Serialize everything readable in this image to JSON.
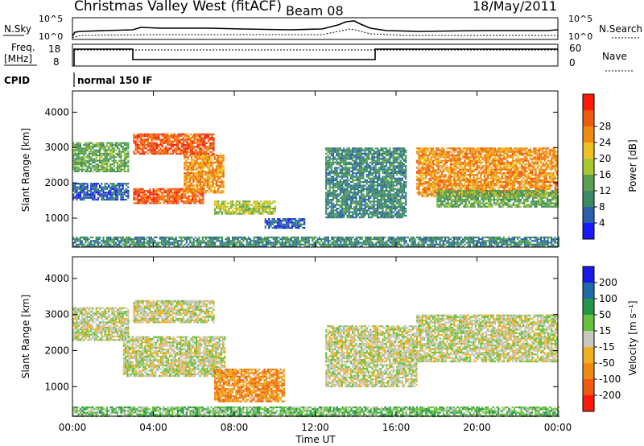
{
  "header": {
    "title": "Christmas Valley West (fitACF)",
    "beam": "Beam 08",
    "date": "18/May/2011"
  },
  "strip_panels": {
    "nsky_label": "N.Sky",
    "nsearch_label": "N.Search",
    "noise_ticks_left": [
      "10^5",
      "10^0"
    ],
    "noise_ticks_right": [
      "10^5",
      "10^0"
    ],
    "freq_label_1": "Freq.",
    "freq_label_2": "[MHz]",
    "freq_ticks": [
      "18",
      "8"
    ],
    "nave_label": "Nave",
    "nave_ticks": [
      "60",
      "0"
    ],
    "cpid_label": "CPID",
    "cpid_value": "normal 150 IF"
  },
  "colors": {
    "power": [
      "#1a1aff",
      "#2a5fb0",
      "#3b8c66",
      "#5aa050",
      "#a8c832",
      "#f0c020",
      "#f08a10",
      "#f05a10",
      "#ff1a0a"
    ],
    "velocity": [
      "#1a1ae6",
      "#1f6aa8",
      "#23964a",
      "#66c23a",
      "#c8c8c0",
      "#f0b020",
      "#f08a10",
      "#f05a10",
      "#ff1a0a"
    ]
  },
  "chart_data": [
    {
      "type": "heatmap",
      "panel": "power",
      "xlabel": "Time UT",
      "ylabel": "Slant Range [km]",
      "x_ticks": [
        "00:00",
        "04:00",
        "08:00",
        "12:00",
        "16:00",
        "20:00",
        "00:00"
      ],
      "xlim_hours": [
        0,
        24
      ],
      "y_ticks": [
        "1000",
        "2000",
        "3000",
        "4000"
      ],
      "ylim_km": [
        180,
        4600
      ],
      "colorbar_label": "Power [dB]",
      "colorbar_ticks": [
        "4",
        "8",
        "12",
        "16",
        "20",
        "24",
        "28"
      ],
      "colorbar_range": [
        0,
        30
      ],
      "regions": [
        {
          "t0": 0.0,
          "t1": 2.8,
          "r0": 2300,
          "r1": 3150,
          "level": 3
        },
        {
          "t0": 0.0,
          "t1": 2.8,
          "r0": 1500,
          "r1": 2000,
          "level": 1
        },
        {
          "t0": 3.0,
          "t1": 7.0,
          "r0": 2800,
          "r1": 3400,
          "level": 7
        },
        {
          "t0": 3.0,
          "t1": 6.5,
          "r0": 1400,
          "r1": 1850,
          "level": 7
        },
        {
          "t0": 5.5,
          "t1": 7.5,
          "r0": 1700,
          "r1": 2800,
          "level": 6
        },
        {
          "t0": 7.0,
          "t1": 10.0,
          "r0": 1100,
          "r1": 1500,
          "level": 4
        },
        {
          "t0": 9.5,
          "t1": 11.5,
          "r0": 700,
          "r1": 1000,
          "level": 1
        },
        {
          "t0": 12.5,
          "t1": 16.5,
          "r0": 1000,
          "r1": 3000,
          "level": 2
        },
        {
          "t0": 17.0,
          "t1": 24.0,
          "r0": 1600,
          "r1": 3000,
          "level": 6
        },
        {
          "t0": 18.0,
          "t1": 24.0,
          "r0": 1300,
          "r1": 1800,
          "level": 3
        },
        {
          "t0": 0.0,
          "t1": 24.0,
          "r0": 200,
          "r1": 480,
          "level": 2
        }
      ]
    },
    {
      "type": "heatmap",
      "panel": "velocity",
      "xlabel": "Time UT",
      "ylabel": "Slant Range [km]",
      "x_ticks": [
        "00:00",
        "04:00",
        "08:00",
        "12:00",
        "16:00",
        "20:00",
        "00:00"
      ],
      "xlim_hours": [
        0,
        24
      ],
      "y_ticks": [
        "1000",
        "2000",
        "3000",
        "4000"
      ],
      "ylim_km": [
        180,
        4600
      ],
      "colorbar_label": "Velocity [m s⁻¹]",
      "colorbar_ticks": [
        "200",
        "100",
        "50",
        "15",
        "-15",
        "-50",
        "-100",
        "-200"
      ],
      "colorbar_range": [
        -250,
        250
      ],
      "regions": [
        {
          "t0": 0.0,
          "t1": 2.8,
          "r0": 2300,
          "r1": 3200,
          "level": 4
        },
        {
          "t0": 3.0,
          "t1": 7.0,
          "r0": 2800,
          "r1": 3400,
          "level": 4
        },
        {
          "t0": 2.5,
          "t1": 7.5,
          "r0": 1300,
          "r1": 2400,
          "level": 4
        },
        {
          "t0": 7.0,
          "t1": 10.5,
          "r0": 600,
          "r1": 1500,
          "level": 6
        },
        {
          "t0": 12.5,
          "t1": 17.0,
          "r0": 1000,
          "r1": 2700,
          "level": 4
        },
        {
          "t0": 17.0,
          "t1": 24.0,
          "r0": 1700,
          "r1": 3000,
          "level": 4
        },
        {
          "t0": 0.0,
          "t1": 24.0,
          "r0": 200,
          "r1": 450,
          "level": 3
        }
      ]
    }
  ]
}
